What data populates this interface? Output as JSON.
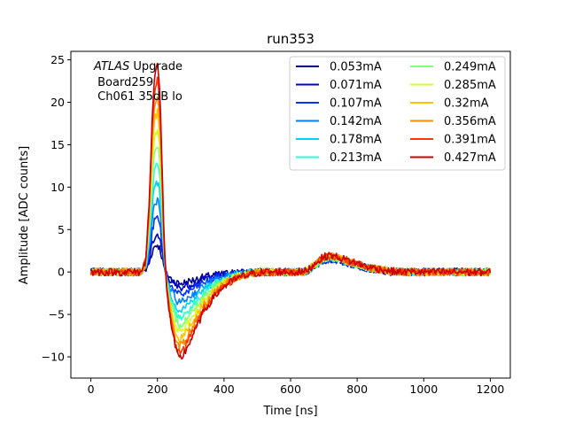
{
  "chart_data": {
    "type": "line",
    "title": "run353",
    "xlabel": "Time [ns]",
    "ylabel": "Amplitude [ADC counts]",
    "xlim": [
      -60,
      1260
    ],
    "ylim": [
      -12.5,
      26
    ],
    "xticks": [
      0,
      200,
      400,
      600,
      800,
      1000,
      1200
    ],
    "xtick_labels": [
      "0",
      "200",
      "400",
      "600",
      "800",
      "1000",
      "1200"
    ],
    "yticks": [
      -10,
      -5,
      0,
      5,
      10,
      15,
      20,
      25
    ],
    "ytick_labels": [
      "−10",
      "−5",
      "0",
      "5",
      "10",
      "15",
      "20",
      "25"
    ],
    "legend_position": "top-right",
    "legend_columns": 2,
    "annotation": {
      "atlas": "ATLAS",
      "upgrade": " Upgrade",
      "board": " Board259",
      "channel": " Ch061 35dB lo"
    },
    "x": [
      0,
      25,
      50,
      75,
      100,
      125,
      150,
      165,
      175,
      185,
      192,
      200,
      205,
      210,
      215,
      220,
      228,
      235,
      245,
      255,
      265,
      275,
      285,
      300,
      320,
      340,
      370,
      400,
      440,
      480,
      520,
      560,
      600,
      640,
      660,
      680,
      700,
      720,
      740,
      760,
      800,
      840,
      880,
      920,
      960,
      1000,
      1050,
      1100,
      1150,
      1200
    ],
    "shape_pos": [
      0,
      0,
      0,
      0,
      0,
      0,
      0,
      0.05,
      0.33,
      0.78,
      0.96,
      1.0,
      0.93,
      0.75,
      0.45,
      0.15,
      -0.08,
      -0.19,
      -0.29,
      -0.38,
      -0.42,
      -0.41,
      -0.38,
      -0.33,
      -0.26,
      -0.19,
      -0.12,
      -0.07,
      -0.03,
      -0.01,
      0,
      0,
      0,
      0,
      0.02,
      0.05,
      0.07,
      0.08,
      0.07,
      0.06,
      0.04,
      0.02,
      0.01,
      0,
      0,
      0,
      0,
      0,
      0,
      0
    ],
    "series": [
      {
        "name": "0.053mA",
        "peak": 3.2,
        "color": "#00008b"
      },
      {
        "name": "0.071mA",
        "peak": 4.3,
        "color": "#0000cd"
      },
      {
        "name": "0.107mA",
        "peak": 6.4,
        "color": "#0033ff"
      },
      {
        "name": "0.142mA",
        "peak": 8.5,
        "color": "#0080ff"
      },
      {
        "name": "0.178mA",
        "peak": 10.6,
        "color": "#00d0ff"
      },
      {
        "name": "0.213mA",
        "peak": 12.7,
        "color": "#29ffce"
      },
      {
        "name": "0.249mA",
        "peak": 14.8,
        "color": "#7dff7a"
      },
      {
        "name": "0.285mA",
        "peak": 16.9,
        "color": "#ceff29"
      },
      {
        "name": "0.32mA",
        "peak": 18.8,
        "color": "#ffc400"
      },
      {
        "name": "0.356mA",
        "peak": 20.8,
        "color": "#ff8c00"
      },
      {
        "name": "0.391mA",
        "peak": 22.7,
        "color": "#ff3a00"
      },
      {
        "name": "0.427mA",
        "peak": 24.3,
        "color": "#cc0000"
      }
    ]
  }
}
